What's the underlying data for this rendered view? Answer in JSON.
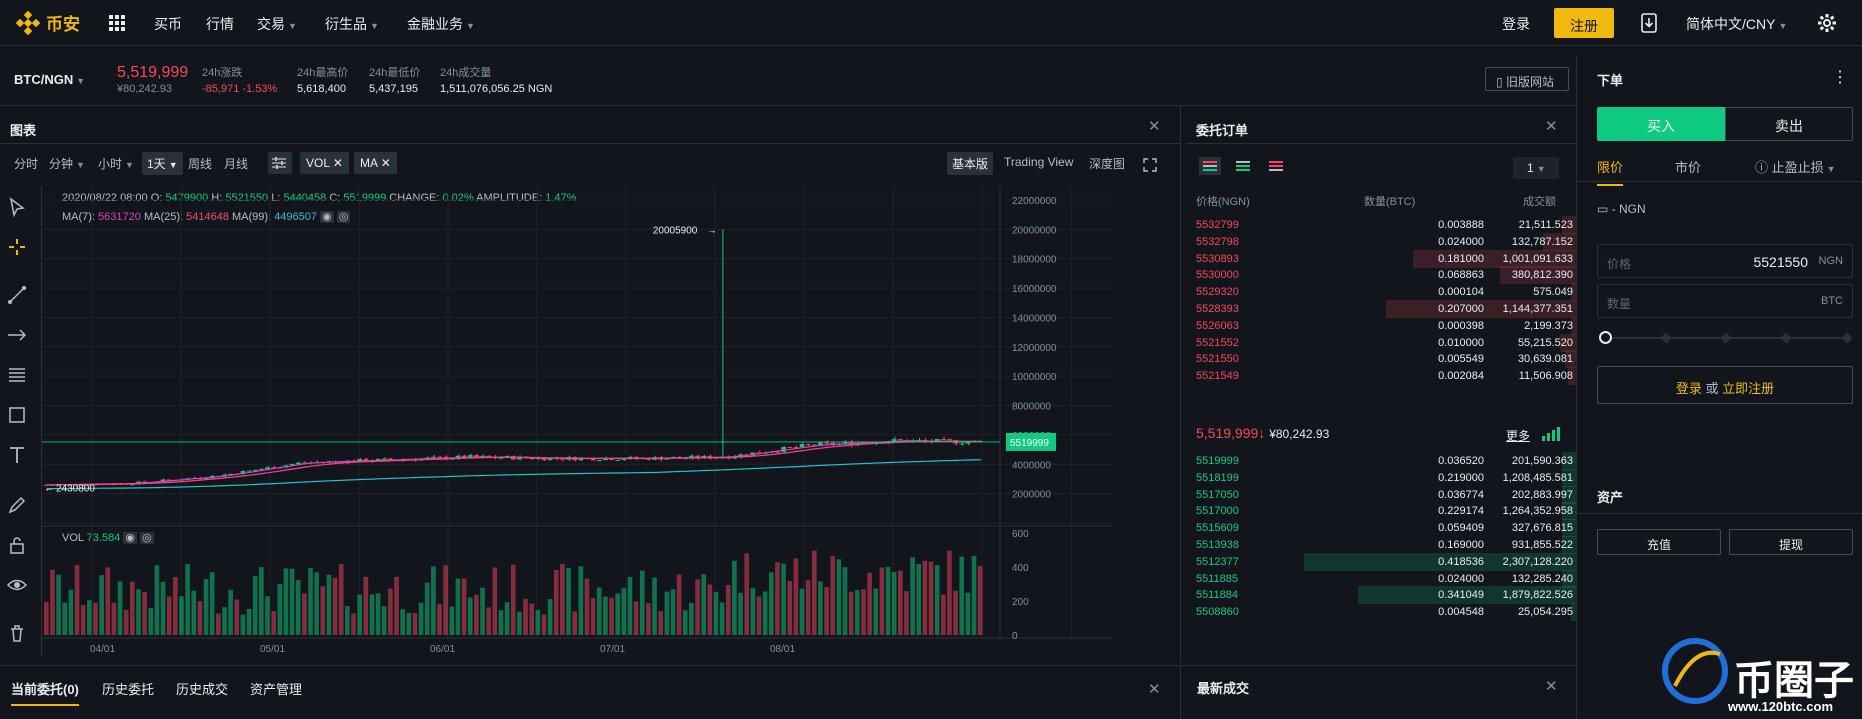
{
  "nav": {
    "logo": "币安",
    "items": [
      "买币",
      "行情",
      "交易",
      "衍生品",
      "金融业务"
    ],
    "login": "登录",
    "register": "注册",
    "lang": "简体中文/CNY"
  },
  "ticker": {
    "pair": "BTC/NGN",
    "price": "5,519,999",
    "price_sub": "¥80,242.93",
    "labels": [
      "24h涨跌",
      "24h最高价",
      "24h最低价",
      "24h成交量"
    ],
    "change": "-85,971 -1.53%",
    "high": "5,618,400",
    "low": "5,437,195",
    "volume": "1,511,076,056.25 NGN",
    "old_site": "旧版网站"
  },
  "chart": {
    "title": "图表",
    "intervals": [
      "分时",
      "分钟",
      "小时",
      "1天",
      "周线",
      "月线"
    ],
    "interval_active": "1天",
    "indicators": [
      "VOL",
      "MA"
    ],
    "views": [
      "基本版",
      "Trading View",
      "深度图"
    ],
    "view_active": "基本版",
    "ohlc_info": {
      "date": "2020/08/22 08:00",
      "O": "5479900",
      "H": "5521550",
      "L": "5440458",
      "C": "5519999",
      "change": "0.02%",
      "amplitude": "1.47%"
    },
    "ma": {
      "ma7": "5631720",
      "ma25": "5414648",
      "ma99": "4496507"
    },
    "price_axis": [
      "22000000",
      "20000000",
      "18000000",
      "16000000",
      "14000000",
      "12000000",
      "10000000",
      "8000000",
      "6000000",
      "4000000",
      "2000000"
    ],
    "last_price_tag": "5519999",
    "max_annotation": "20005900",
    "min_annotation": "2430800",
    "vol_label": "VOL",
    "vol_value": "73.584",
    "vol_axis": [
      "600",
      "400",
      "200",
      "0"
    ],
    "date_axis": [
      "04/01",
      "05/01",
      "06/01",
      "07/01",
      "08/01"
    ]
  },
  "chart_data": {
    "type": "candlestick",
    "series": [
      {
        "name": "MA(7)",
        "color": "#d63ec5"
      },
      {
        "name": "MA(25)",
        "color": "#f0497f"
      },
      {
        "name": "MA(99)",
        "color": "#25c2c9"
      }
    ],
    "ylim": [
      0,
      22000000
    ],
    "x": [
      "03/20",
      "04/01",
      "04/15",
      "05/01",
      "05/15",
      "06/01",
      "06/15",
      "07/01",
      "07/15",
      "08/01",
      "08/15",
      "08/22"
    ],
    "close": [
      2600000,
      2700000,
      3200000,
      4100000,
      4300000,
      4500000,
      4400000,
      4400000,
      4500000,
      5300000,
      5600000,
      5519999
    ],
    "spike": {
      "x": "07/13",
      "high": 20005900
    }
  },
  "orderbook": {
    "title": "委托订单",
    "depth": "1",
    "headers": [
      "价格(NGN)",
      "数量(BTC)",
      "成交额"
    ],
    "asks": [
      [
        "5532799",
        "0.003888",
        "21,511.523",
        0.05
      ],
      [
        "5532798",
        "0.024000",
        "132,787.152",
        0.12
      ],
      [
        "5530893",
        "0.181000",
        "1,001,091.633",
        0.6
      ],
      [
        "5530000",
        "0.068863",
        "380,812.390",
        0.28
      ],
      [
        "5529320",
        "0.000104",
        "575.049",
        0.02
      ],
      [
        "5528393",
        "0.207000",
        "1,144,377.351",
        0.7
      ],
      [
        "5526063",
        "0.000398",
        "2,199.373",
        0.02
      ],
      [
        "5521552",
        "0.010000",
        "55,215.520",
        0.06
      ],
      [
        "5521550",
        "0.005549",
        "30,639.081",
        0.04
      ],
      [
        "5521549",
        "0.002084",
        "11,506.908",
        0.03
      ]
    ],
    "last": "5,519,999",
    "last_arrow": "↓",
    "last_cny": "¥80,242.93",
    "more": "更多",
    "bids": [
      [
        "5519999",
        "0.036520",
        "201,590.363",
        0.05
      ],
      [
        "5518199",
        "0.219000",
        "1,208,485.581",
        0.05
      ],
      [
        "5517050",
        "0.036774",
        "202,883.997",
        0.05
      ],
      [
        "5517000",
        "0.229174",
        "1,264,352.958",
        0.05
      ],
      [
        "5515609",
        "0.059409",
        "327,676.815",
        0.05
      ],
      [
        "5513938",
        "0.169000",
        "931,855.522",
        0.05
      ],
      [
        "5512377",
        "0.418536",
        "2,307,128.220",
        1.0
      ],
      [
        "5511885",
        "0.024000",
        "132,285.240",
        0.05
      ],
      [
        "5511884",
        "0.341049",
        "1,879,822.526",
        0.8
      ],
      [
        "5508860",
        "0.004548",
        "25,054.295",
        0.02
      ]
    ]
  },
  "orderform": {
    "title": "下单",
    "buy": "买入",
    "sell": "卖出",
    "tabs": [
      "限价",
      "市价",
      "止盈止损"
    ],
    "balance": "- NGN",
    "price_label": "价格",
    "price_value": "5521550",
    "price_unit": "NGN",
    "amount_label": "数量",
    "amount_unit": "BTC",
    "login_text": "登录",
    "or": "或",
    "register_text": "立即注册"
  },
  "assets": {
    "title": "资产",
    "deposit": "充值",
    "withdraw": "提现"
  },
  "bottom": {
    "tabs": [
      "当前委托(0)",
      "历史委托",
      "历史成交",
      "资产管理"
    ],
    "trades_title": "最新成交"
  },
  "watermark": {
    "text": "币圈子",
    "url": "www.120btc.com"
  }
}
